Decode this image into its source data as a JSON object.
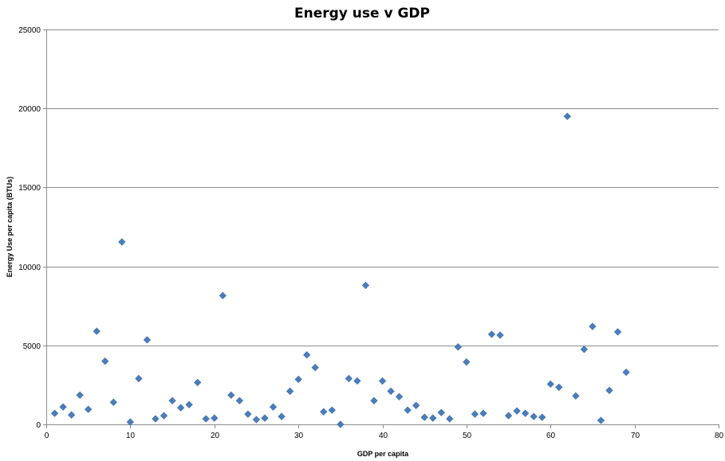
{
  "chart_data": {
    "type": "scatter",
    "title": "Energy use v GDP",
    "xlabel": "GDP per capita",
    "ylabel": "Energy Use per capita (BTUs)",
    "xlim": [
      0,
      80
    ],
    "ylim": [
      0,
      25000
    ],
    "x_ticks": [
      0,
      10,
      20,
      30,
      40,
      50,
      60,
      70,
      80
    ],
    "y_ticks": [
      0,
      5000,
      10000,
      15000,
      20000,
      25000
    ],
    "grid": "horizontal",
    "legend": "none",
    "marker": "diamond",
    "color": "#4a7ebb",
    "series": [
      {
        "x": [
          1,
          2,
          3,
          4,
          5,
          6,
          7,
          8,
          9,
          10,
          11,
          12,
          13,
          14,
          15,
          16,
          17,
          18,
          19,
          20,
          21,
          22,
          23,
          24,
          25,
          26,
          27,
          28,
          29,
          30,
          31,
          32,
          33,
          34,
          35,
          36,
          37,
          38,
          39,
          40,
          41,
          42,
          43,
          44,
          45,
          46,
          47,
          48,
          49,
          50,
          51,
          52,
          53,
          54,
          55,
          56,
          57,
          58,
          59,
          60,
          61,
          62,
          63,
          64,
          65,
          66,
          67,
          68,
          69
        ],
        "y": [
          700,
          1100,
          600,
          1850,
          950,
          5900,
          4000,
          1400,
          11550,
          150,
          2900,
          5350,
          350,
          550,
          1500,
          1050,
          1250,
          2650,
          350,
          400,
          8150,
          1850,
          1500,
          650,
          300,
          400,
          1100,
          500,
          2100,
          2850,
          4400,
          3600,
          800,
          900,
          0,
          2900,
          2750,
          8800,
          1500,
          2750,
          2100,
          1750,
          900,
          1200,
          450,
          400,
          750,
          350,
          4900,
          3950,
          650,
          700,
          5700,
          5650,
          550,
          850,
          700,
          500,
          450,
          2550,
          2350,
          19500,
          1800,
          4750,
          6200,
          250,
          2150,
          5850,
          3300
        ]
      }
    ]
  }
}
